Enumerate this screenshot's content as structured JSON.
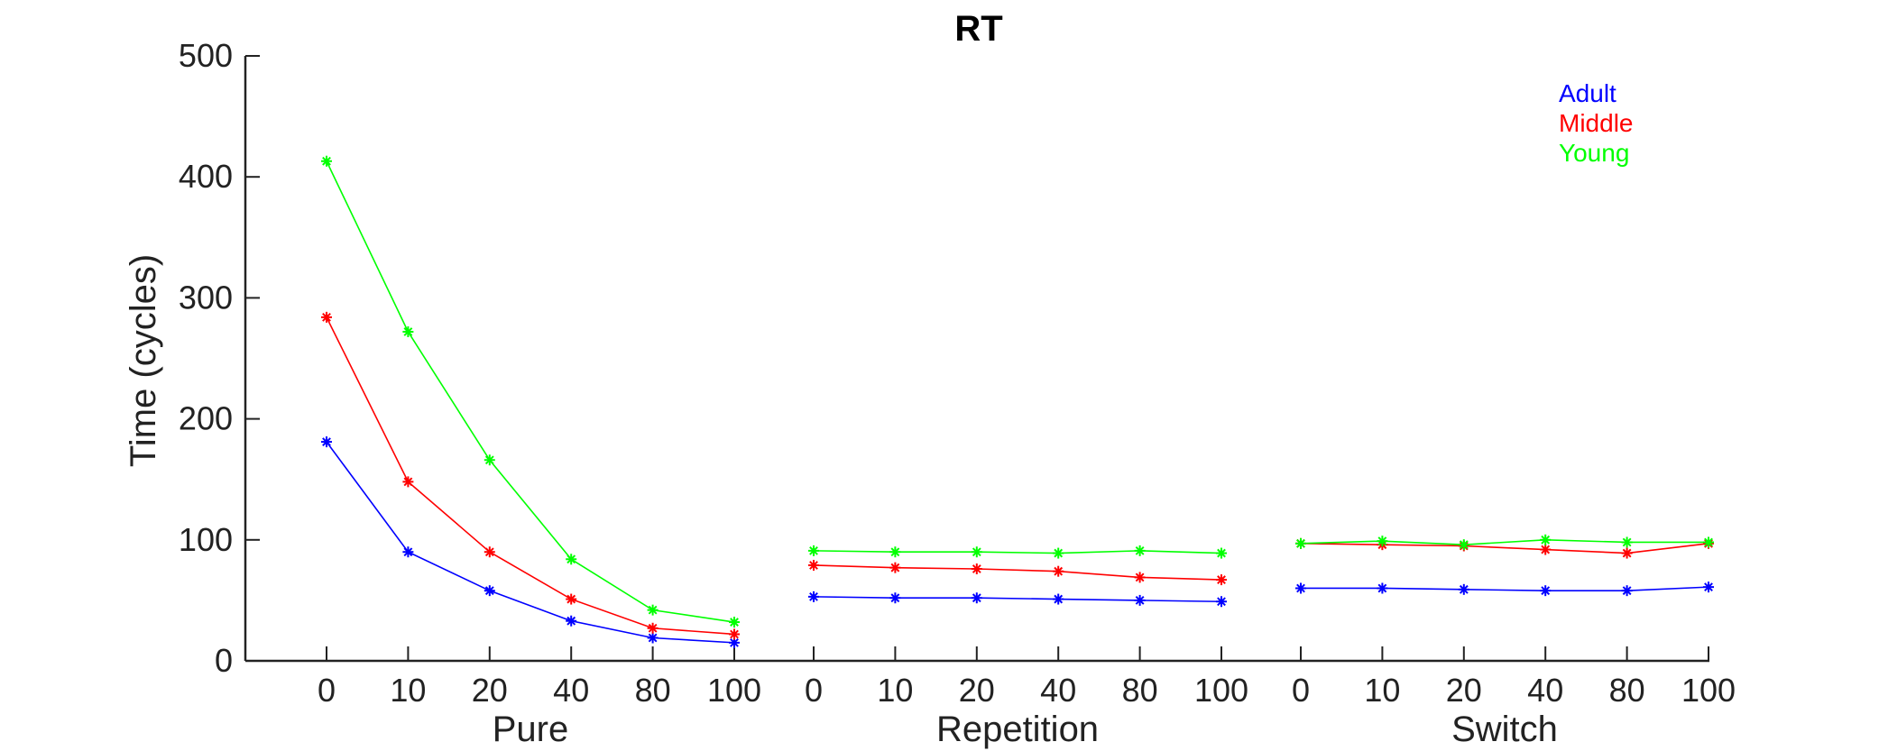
{
  "chart_data": {
    "type": "line",
    "title": "RT",
    "ylabel": "Time (cycles)",
    "xlabel": "",
    "ylim": [
      0,
      500
    ],
    "yticks": [
      0,
      100,
      200,
      300,
      400,
      500
    ],
    "groups": [
      {
        "name": "Pure",
        "categories": [
          "0",
          "10",
          "20",
          "40",
          "80",
          "100"
        ]
      },
      {
        "name": "Repetition",
        "categories": [
          "0",
          "10",
          "20",
          "40",
          "80",
          "100"
        ]
      },
      {
        "name": "Switch",
        "categories": [
          "0",
          "10",
          "20",
          "40",
          "80",
          "100"
        ]
      }
    ],
    "series": [
      {
        "name": "Adult",
        "color": "#0000ff",
        "groups": [
          [
            181,
            90,
            58,
            33,
            19,
            15
          ],
          [
            53,
            52,
            52,
            51,
            50,
            49
          ],
          [
            60,
            60,
            59,
            58,
            58,
            61
          ]
        ]
      },
      {
        "name": "Middle",
        "color": "#ff0000",
        "groups": [
          [
            284,
            148,
            90,
            51,
            27,
            22
          ],
          [
            79,
            77,
            76,
            74,
            69,
            67
          ],
          [
            97,
            96,
            95,
            92,
            89,
            97
          ]
        ]
      },
      {
        "name": "Young",
        "color": "#00ff00",
        "groups": [
          [
            413,
            272,
            166,
            84,
            42,
            32
          ],
          [
            91,
            90,
            90,
            89,
            91,
            89
          ],
          [
            97,
            99,
            96,
            100,
            98,
            98
          ]
        ]
      }
    ],
    "legend_position": "top-right",
    "marker": "asterisk",
    "grid": false
  }
}
